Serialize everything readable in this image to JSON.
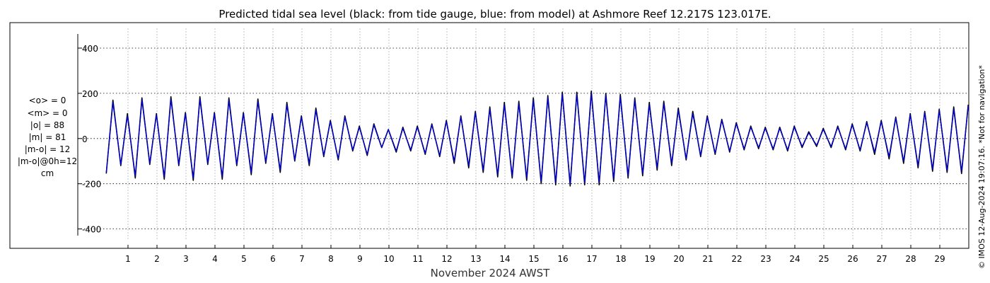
{
  "chart_data": {
    "type": "line",
    "title": "Predicted tidal sea level (black: from tide gauge, blue: from model) at Ashmore Reef 12.217S 123.017E.",
    "xlabel": "November 2024 AWST",
    "ylabel": "",
    "ylim": [
      -420,
      450
    ],
    "yticks": [
      400,
      200,
      0,
      -200,
      -400
    ],
    "xlim": [
      0.0,
      30.0
    ],
    "xticks": [
      1,
      2,
      3,
      4,
      5,
      6,
      7,
      8,
      9,
      10,
      11,
      12,
      13,
      14,
      15,
      16,
      17,
      18,
      19,
      20,
      21,
      22,
      23,
      24,
      25,
      26,
      27,
      28,
      29
    ],
    "xtick_labels": [
      "1",
      "2",
      "3",
      "4",
      "5",
      "6",
      "7",
      "8",
      "9",
      "10",
      "11",
      "12",
      "13",
      "14",
      "15",
      "16",
      "17",
      "18",
      "19",
      "20",
      "21",
      "22",
      "23",
      "24",
      "25",
      "26",
      "27",
      "28",
      "29"
    ],
    "grid": true,
    "series": [
      {
        "name": "from tide gauge",
        "color": "#000000",
        "x": [
          0.25,
          0.75,
          1.25,
          1.75,
          2.25,
          2.75,
          3.25,
          3.75,
          4.25,
          4.75,
          5.25,
          5.75,
          6.25,
          6.75,
          7.25,
          7.75,
          8.25,
          8.75,
          9.25,
          9.75,
          10.25,
          10.75,
          11.25,
          11.75,
          12.25,
          12.75,
          13.25,
          13.75,
          14.25,
          14.75,
          15.25,
          15.75,
          16.25,
          16.75,
          17.25,
          17.75,
          18.25,
          18.75,
          19.25,
          19.75,
          20.25,
          20.75,
          21.25,
          21.75,
          22.25,
          22.75,
          23.25,
          23.75,
          24.25,
          24.75,
          25.25,
          25.75,
          26.25,
          26.75,
          27.25,
          27.75,
          28.25,
          28.75,
          29.25,
          29.75
        ],
        "y": [
          -155,
          -120,
          -175,
          -115,
          -180,
          -120,
          -185,
          -115,
          -180,
          -120,
          -160,
          -110,
          -150,
          -100,
          -120,
          -80,
          -95,
          -55,
          -75,
          -40,
          -60,
          -55,
          -70,
          -80,
          -110,
          -130,
          -150,
          -170,
          -175,
          -185,
          -200,
          -205,
          -210,
          -205,
          -205,
          -190,
          -175,
          -165,
          -140,
          -120,
          -95,
          -80,
          -70,
          -60,
          -50,
          -45,
          -50,
          -55,
          -40,
          -35,
          -40,
          -50,
          -55,
          -70,
          -90,
          -110,
          -130,
          -145,
          -150,
          -155
        ],
        "highs": [
          170,
          110,
          180,
          110,
          185,
          115,
          185,
          115,
          180,
          115,
          175,
          110,
          160,
          100,
          135,
          80,
          100,
          55,
          65,
          40,
          50,
          55,
          65,
          80,
          100,
          120,
          140,
          160,
          165,
          180,
          190,
          205,
          205,
          210,
          200,
          195,
          180,
          160,
          165,
          135,
          120,
          100,
          85,
          70,
          55,
          50,
          50,
          55,
          30,
          45,
          55,
          65,
          75,
          80,
          95,
          110,
          120,
          130,
          140,
          150
        ]
      },
      {
        "name": "from model",
        "color": "#0000cc",
        "x": [
          0.25,
          0.75,
          1.25,
          1.75,
          2.25,
          2.75,
          3.25,
          3.75,
          4.25,
          4.75,
          5.25,
          5.75,
          6.25,
          6.75,
          7.25,
          7.75,
          8.25,
          8.75,
          9.25,
          9.75,
          10.25,
          10.75,
          11.25,
          11.75,
          12.25,
          12.75,
          13.25,
          13.75,
          14.25,
          14.75,
          15.25,
          15.75,
          16.25,
          16.75,
          17.25,
          17.75,
          18.25,
          18.75,
          19.25,
          19.75,
          20.25,
          20.75,
          21.25,
          21.75,
          22.25,
          22.75,
          23.25,
          23.75,
          24.25,
          24.75,
          25.25,
          25.75,
          26.25,
          26.75,
          27.25,
          27.75,
          28.25,
          28.75,
          29.25,
          29.75
        ],
        "y": [
          -150,
          -115,
          -165,
          -110,
          -170,
          -115,
          -175,
          -110,
          -170,
          -115,
          -150,
          -105,
          -140,
          -95,
          -110,
          -75,
          -90,
          -50,
          -70,
          -40,
          -55,
          -50,
          -65,
          -75,
          -100,
          -120,
          -140,
          -160,
          -165,
          -175,
          -190,
          -195,
          -200,
          -195,
          -195,
          -180,
          -165,
          -155,
          -130,
          -110,
          -90,
          -75,
          -65,
          -55,
          -45,
          -40,
          -45,
          -50,
          -35,
          -30,
          -35,
          -45,
          -50,
          -60,
          -80,
          -100,
          -120,
          -135,
          -140,
          -145
        ],
        "highs": [
          160,
          100,
          170,
          105,
          175,
          110,
          175,
          110,
          170,
          110,
          165,
          105,
          150,
          95,
          125,
          75,
          95,
          50,
          60,
          40,
          45,
          50,
          60,
          75,
          95,
          115,
          130,
          150,
          155,
          170,
          180,
          195,
          195,
          200,
          190,
          185,
          170,
          150,
          155,
          125,
          110,
          95,
          80,
          65,
          50,
          45,
          45,
          50,
          25,
          40,
          50,
          60,
          70,
          75,
          90,
          105,
          115,
          125,
          130,
          145
        ]
      }
    ]
  },
  "stats": {
    "lines": [
      "<o> = 0",
      "<m> = 0",
      "|o| = 88",
      "|m| = 81",
      "|m-o| = 12",
      "|m-o|@0h=12",
      "cm"
    ]
  },
  "credit": "© IMOS 12-Aug-2024 19:07:16. *Not for navigation*"
}
